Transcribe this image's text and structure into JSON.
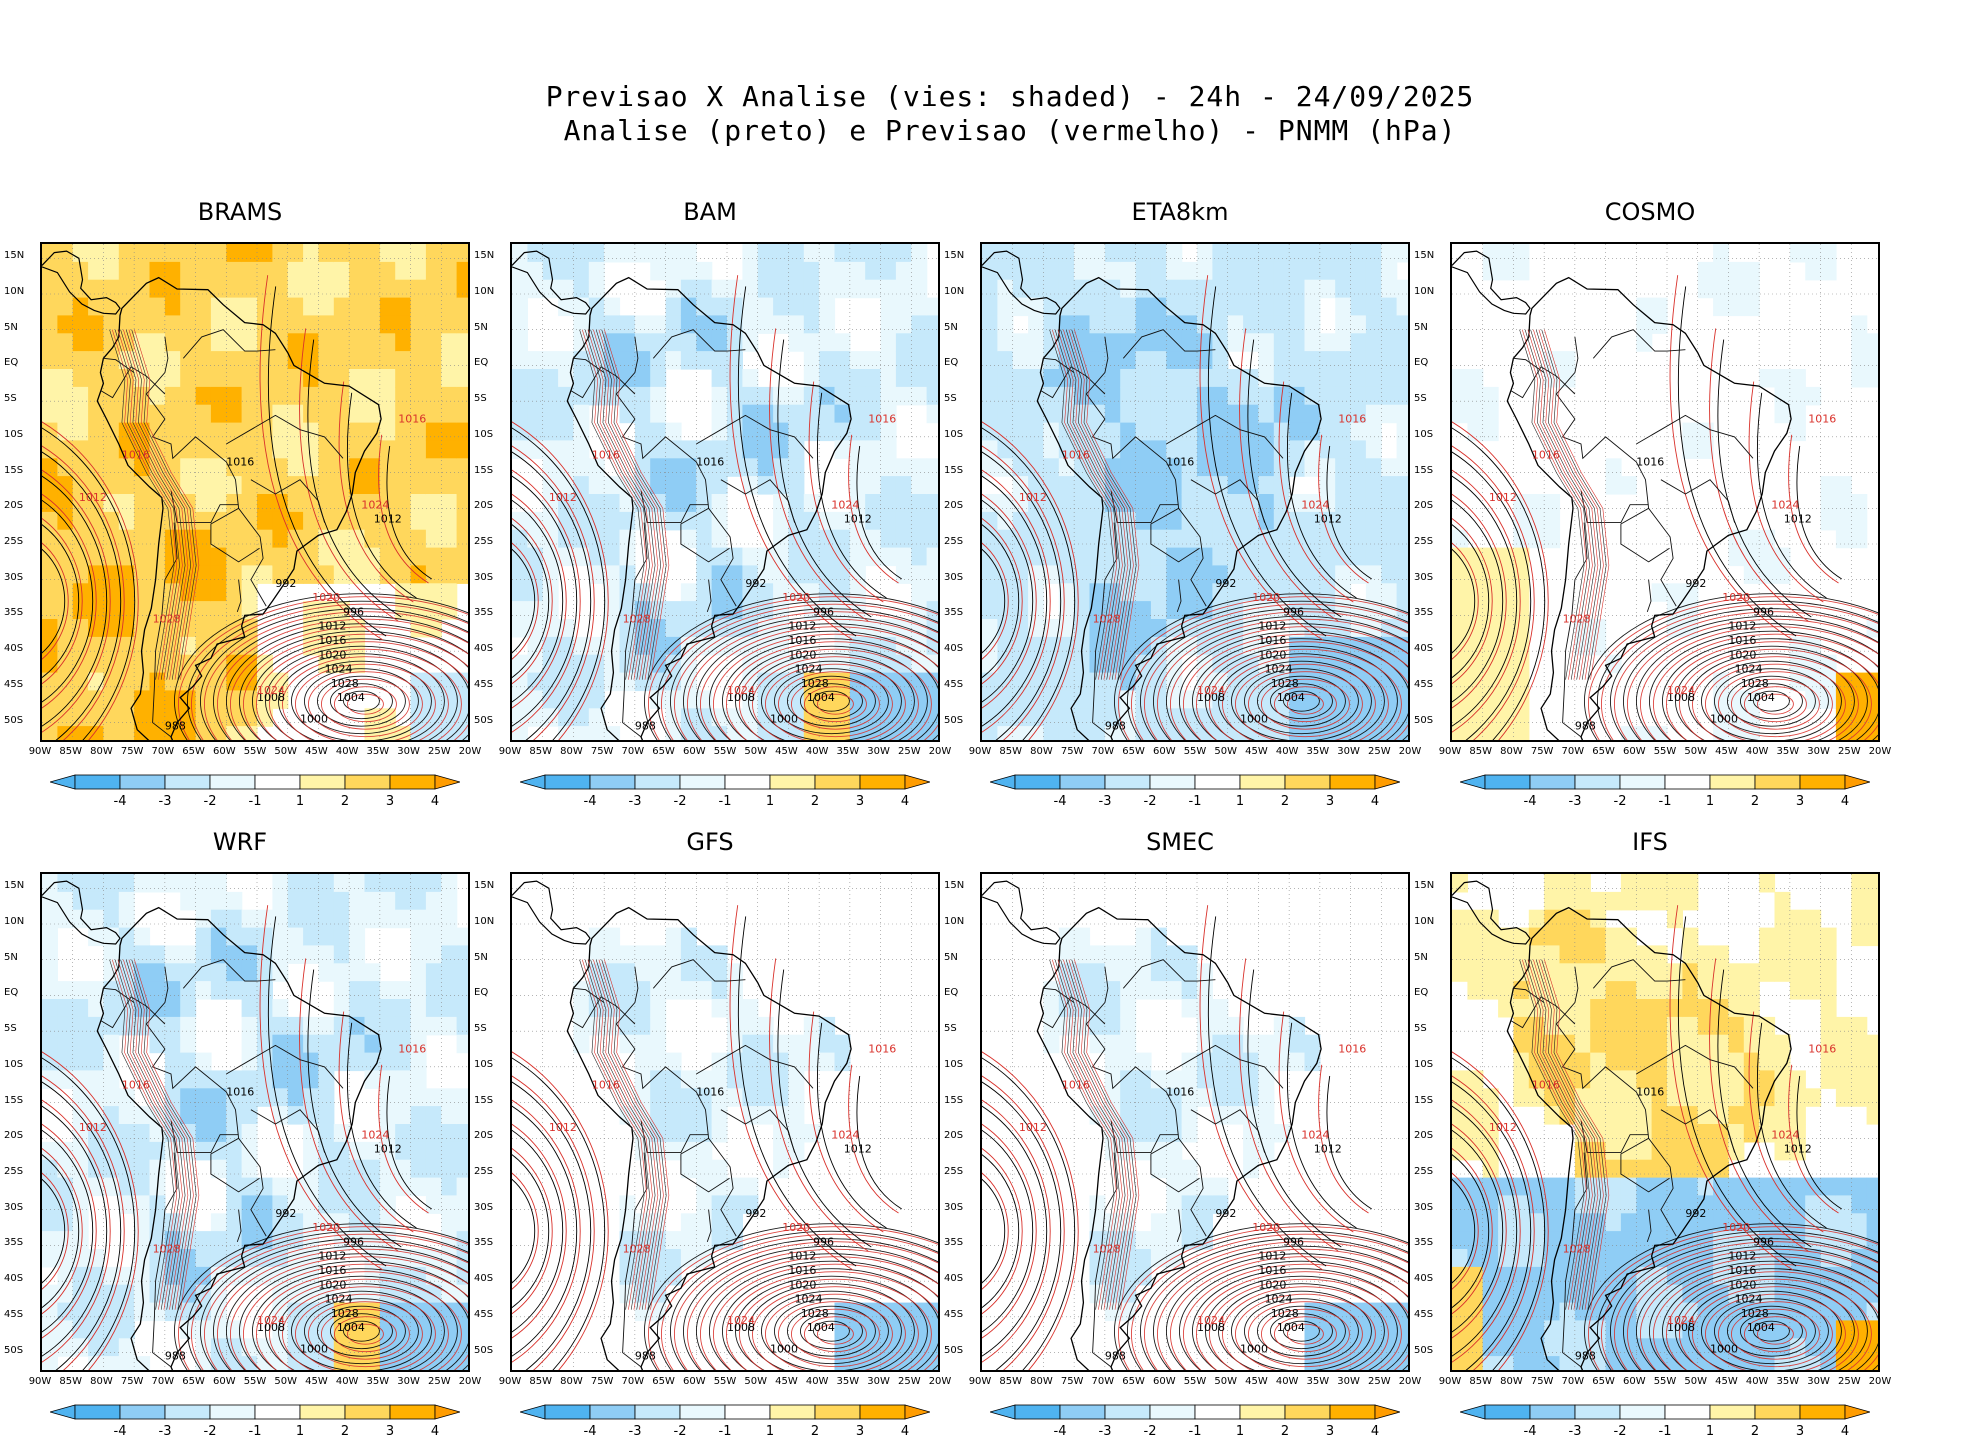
{
  "figure": {
    "title_line1": "Previsao X Analise (vies: shaded) - 24h - 24/09/2025",
    "title_line2": "Analise (preto) e Previsao (vermelho) - PNMM (hPa)"
  },
  "axes": {
    "y_labels": [
      "15N",
      "10N",
      "5N",
      "EQ",
      "5S",
      "10S",
      "15S",
      "20S",
      "25S",
      "30S",
      "35S",
      "40S",
      "45S",
      "50S"
    ],
    "x_labels": [
      "90W",
      "85W",
      "80W",
      "75W",
      "70W",
      "65W",
      "60W",
      "55W",
      "50W",
      "45W",
      "40W",
      "35W",
      "30W",
      "25W",
      "20W"
    ]
  },
  "colorbar": {
    "labels": [
      "-4",
      "-3",
      "-2",
      "-1",
      "1",
      "2",
      "3",
      "4"
    ],
    "colors": [
      "#4fb3f0",
      "#8fcdf5",
      "#c6e9fb",
      "#e9f8fd",
      "#ffffff",
      "#fff4a8",
      "#ffd75c",
      "#ffb100",
      "#ff9c00"
    ]
  },
  "colors": {
    "analysis_contour": "#000000",
    "forecast_contour": "#d9312b",
    "land_outline": "#000000"
  },
  "panels": [
    {
      "name": "BRAMS",
      "bias": "warm-strong"
    },
    {
      "name": "BAM",
      "bias": "mixed"
    },
    {
      "name": "ETA8km",
      "bias": "cool"
    },
    {
      "name": "COSMO",
      "bias": "mixed-light"
    },
    {
      "name": "WRF",
      "bias": "mixed"
    },
    {
      "name": "GFS",
      "bias": "light"
    },
    {
      "name": "SMEC",
      "bias": "light"
    },
    {
      "name": "IFS",
      "bias": "split"
    }
  ],
  "contour_labels": {
    "analysis": [
      "1008",
      "1012",
      "1016",
      "1020",
      "1024",
      "1028",
      "1004",
      "1000",
      "996",
      "992",
      "988"
    ],
    "forecast": [
      "1012",
      "1016",
      "1020",
      "1024",
      "1028",
      "1008",
      "1004",
      "996"
    ]
  }
}
